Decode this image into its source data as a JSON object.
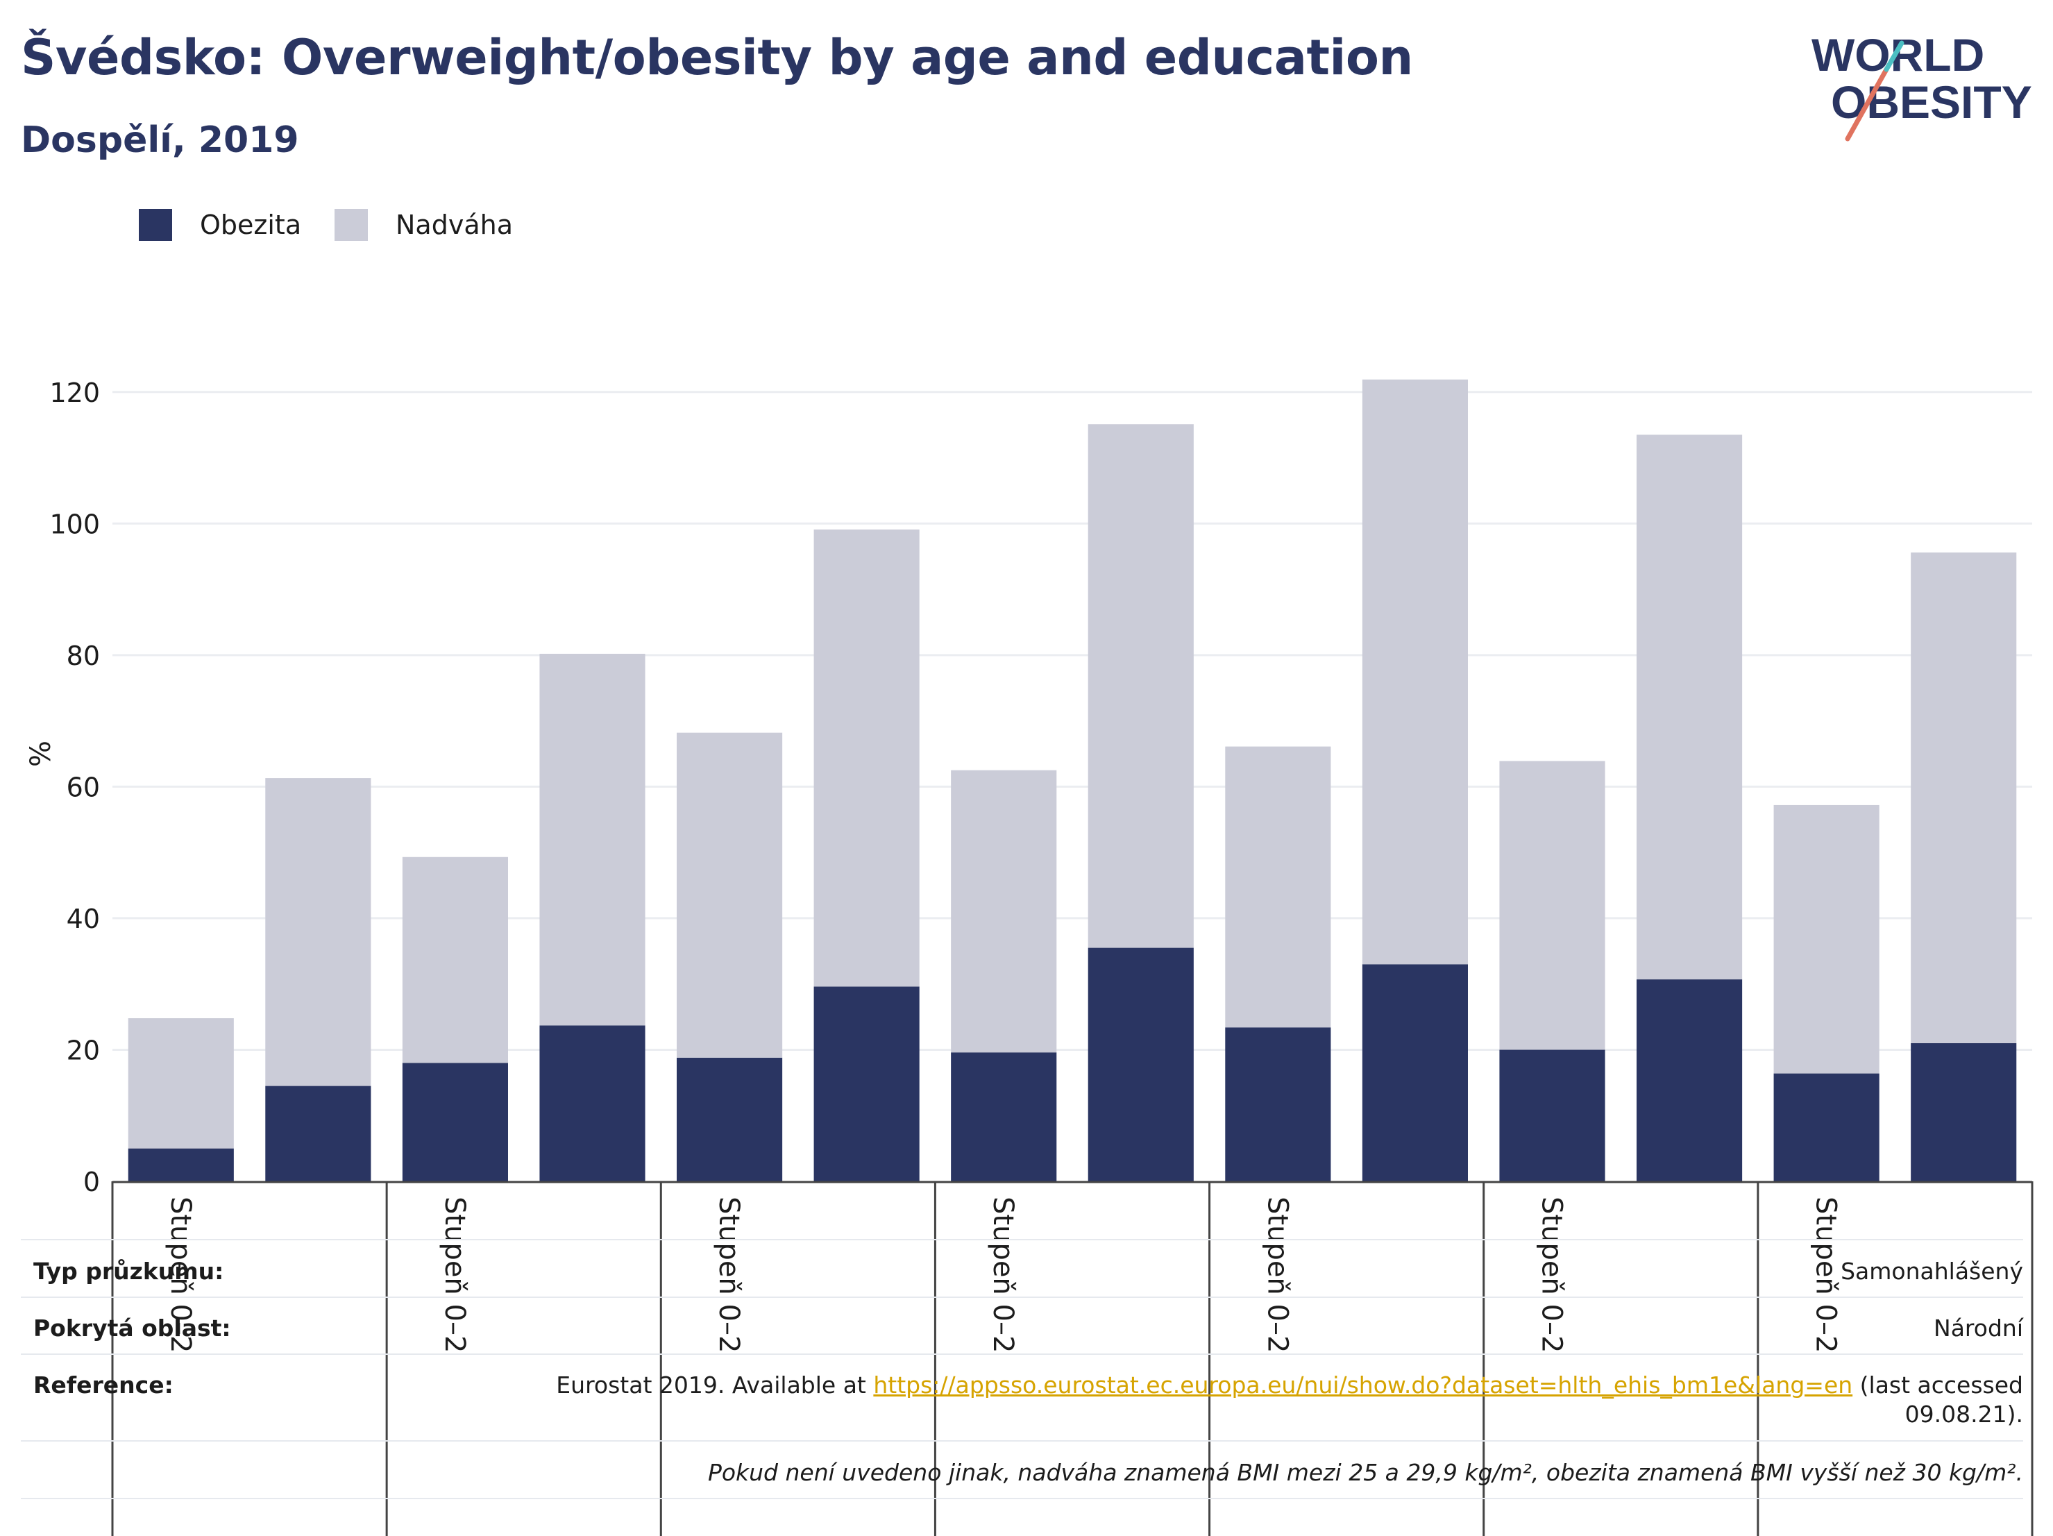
{
  "header": {
    "title": "Švédsko: Overweight/obesity by age and education",
    "subtitle": "Dospělí, 2019"
  },
  "logo": {
    "line1": "WORLD",
    "line2": "OBESITY"
  },
  "colors": {
    "obesity": "#2a3562",
    "overweight": "#cbccd8",
    "grid": "#ebedf1",
    "link": "#d6a300"
  },
  "chart_data": {
    "type": "bar",
    "stacked": true,
    "ylabel": "%",
    "ylim": [
      0,
      130
    ],
    "yticks": [
      0,
      20,
      40,
      60,
      80,
      100,
      120
    ],
    "grid": true,
    "legend_position": "top-left",
    "categories": [
      "Stupeň 0–2",
      "",
      "Stupeň 0–2",
      "",
      "Stupeň 0–2",
      "",
      "Stupeň 0–2",
      "",
      "Stupeň 0–2",
      "",
      "Stupeň 0–2",
      "",
      "Stupeň 0–2",
      ""
    ],
    "series": [
      {
        "name": "Obezita",
        "values": [
          5,
          14.5,
          18,
          23.7,
          18.8,
          29.6,
          19.6,
          35.5,
          23.4,
          33,
          20,
          30.7,
          16.4,
          21
        ]
      },
      {
        "name": "Nadváha",
        "values": [
          19.8,
          46.8,
          31.3,
          56.5,
          49.4,
          69.5,
          42.9,
          79.6,
          42.7,
          88.9,
          43.9,
          82.8,
          40.8,
          74.6
        ]
      }
    ]
  },
  "info": {
    "survey_type_label": "Typ průzkumu:",
    "survey_type_value": "Samonahlášený",
    "coverage_label": "Pokrytá oblast:",
    "coverage_value": "Národní",
    "reference_label": "Reference:",
    "reference_prefix": "Eurostat 2019. Available at ",
    "reference_link": "https://appsso.eurostat.ec.europa.eu/nui/show.do?dataset=hlth_ehis_bm1e&lang=en",
    "reference_suffix": " (last accessed",
    "reference_date": "09.08.21).",
    "note": "Pokud není uvedeno jinak, nadváha znamená BMI mezi 25 a 29,9 kg/m², obezita znamená BMI vyšší než 30 kg/m²."
  }
}
